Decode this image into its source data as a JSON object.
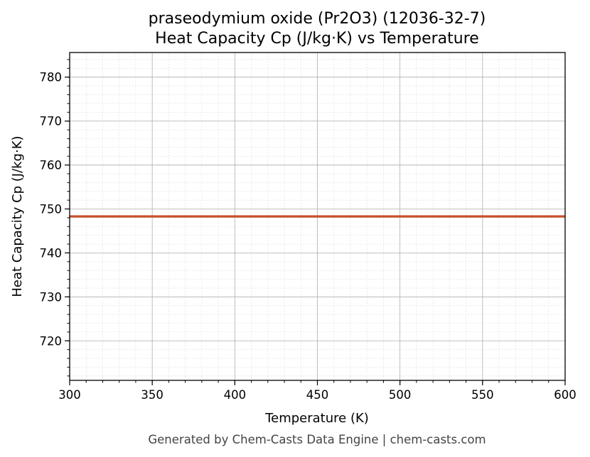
{
  "chart_data": {
    "type": "line",
    "title": "praseodymium oxide (Pr2O3) (12036-32-7)",
    "subtitle": "Heat Capacity Cp (J/kg·K) vs Temperature",
    "xlabel": "Temperature (K)",
    "ylabel": "Heat Capacity Cp (J/kg·K)",
    "xlim": [
      300,
      600
    ],
    "ylim": [
      711,
      785.6
    ],
    "xticks": [
      300,
      350,
      400,
      450,
      500,
      550,
      600
    ],
    "yticks": [
      720,
      730,
      740,
      750,
      760,
      770,
      780
    ],
    "grid": true,
    "series": [
      {
        "x": [
          300,
          350,
          400,
          450,
          500,
          550,
          600
        ],
        "values": [
          748.3,
          748.3,
          748.3,
          748.3,
          748.3,
          748.3,
          748.3
        ],
        "color": "#c8502a"
      }
    ]
  },
  "footer": "Generated by Chem-Casts Data Engine | chem-casts.com"
}
